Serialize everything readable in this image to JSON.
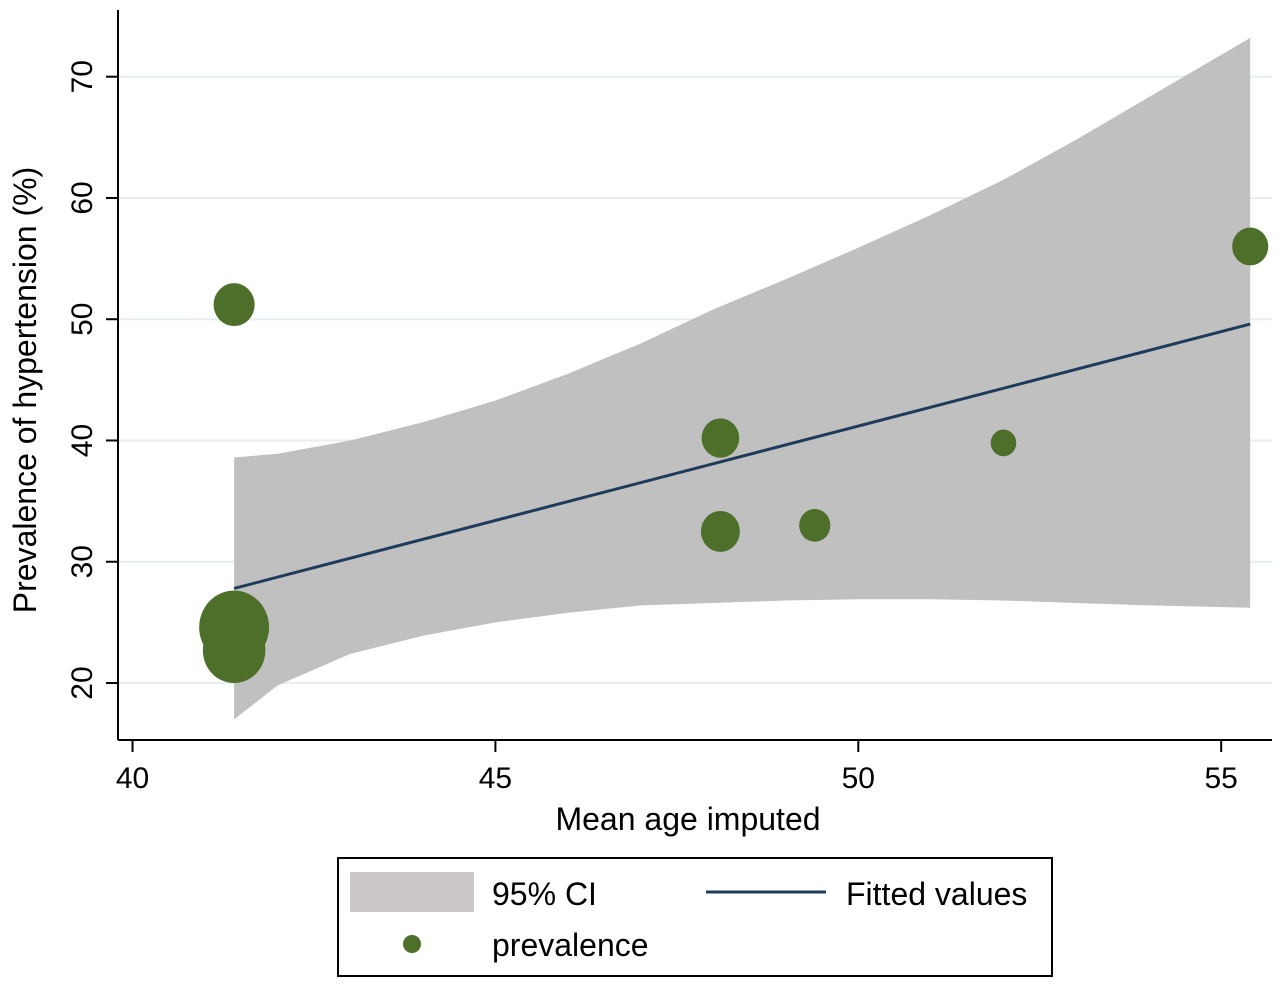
{
  "chart_data": {
    "type": "scatter",
    "xlabel": "Mean age imputed",
    "ylabel": "Prevalence of hypertension (%)",
    "xlim": [
      39.8,
      55.7
    ],
    "ylim": [
      15.3,
      75.5
    ],
    "x_ticks": [
      40,
      45,
      50,
      55
    ],
    "y_ticks": [
      20,
      30,
      40,
      50,
      60,
      70
    ],
    "grid": "horizontal",
    "legend_position": "bottom",
    "series": [
      {
        "name": "95% CI",
        "kind": "band",
        "color": "#c0c0c0",
        "x": [
          41.4,
          42.0,
          43.0,
          44.0,
          45.0,
          46.0,
          47.0,
          48.0,
          49.0,
          50.0,
          51.0,
          52.0,
          53.0,
          54.0,
          55.4
        ],
        "lower": [
          17.0,
          19.8,
          22.4,
          23.9,
          25.0,
          25.8,
          26.4,
          26.6,
          26.8,
          26.9,
          26.9,
          26.8,
          26.6,
          26.4,
          26.2
        ],
        "upper": [
          38.6,
          38.9,
          40.0,
          41.5,
          43.3,
          45.5,
          48.0,
          50.8,
          53.3,
          55.9,
          58.6,
          61.5,
          64.8,
          68.3,
          73.2
        ]
      },
      {
        "name": "Fitted values",
        "kind": "line",
        "color": "#1f3b5a",
        "x": [
          41.4,
          55.4
        ],
        "y": [
          27.8,
          49.6
        ]
      },
      {
        "name": "prevalence",
        "kind": "points",
        "color": "#4e6f2a",
        "points": [
          {
            "x": 41.4,
            "y": 51.2,
            "weight": 1.55
          },
          {
            "x": 41.4,
            "y": 24.6,
            "weight": 4.5
          },
          {
            "x": 41.4,
            "y": 22.7,
            "weight": 3.6
          },
          {
            "x": 48.1,
            "y": 40.2,
            "weight": 1.3
          },
          {
            "x": 48.1,
            "y": 32.5,
            "weight": 1.4
          },
          {
            "x": 49.4,
            "y": 33.0,
            "weight": 0.9
          },
          {
            "x": 52.0,
            "y": 39.8,
            "weight": 0.6
          },
          {
            "x": 55.4,
            "y": 56.0,
            "weight": 1.2
          }
        ]
      }
    ],
    "legend": {
      "ci_label": "95% CI",
      "fitted_label": "Fitted values",
      "points_label": "prevalence",
      "ci_color": "#cdc7c7"
    }
  }
}
